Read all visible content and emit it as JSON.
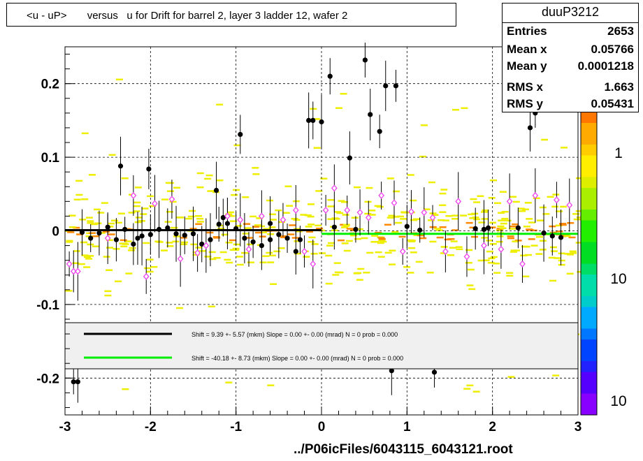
{
  "title": "<u - uP>       versus   u for Drift for barrel 2, layer 3 ladder 12, wafer 2",
  "stats": {
    "name": "duuP3212",
    "rows": [
      {
        "label": "Entries",
        "value": "2653"
      },
      {
        "label": "Mean x",
        "value": "0.05766"
      },
      {
        "label": "Mean y",
        "value": "0.0001218"
      },
      {
        "label": "RMS x",
        "value": "1.663"
      },
      {
        "label": "RMS y",
        "value": "0.05431"
      }
    ]
  },
  "footer": "../P06icFiles/6043115_6043121.root",
  "colors": {
    "black_series": "#000000",
    "green_series": "#00ee00",
    "hollow_marker": "#ee44ee",
    "scatter_yellow": "#eeee00",
    "scatter_orange": "#ff8800"
  },
  "chart_data": {
    "type": "scatter",
    "xlim": [
      -3,
      3
    ],
    "ylim": [
      -0.25,
      0.25
    ],
    "xticks": [
      "-3",
      "-2",
      "-1",
      "0",
      "1",
      "2",
      "3"
    ],
    "yticks": [
      "-0.2",
      "-0.1",
      "0",
      "0.1",
      "0.2"
    ],
    "grid": true,
    "colorbar_labels": [
      "1",
      "10",
      "10"
    ],
    "legend": {
      "placement": "bottom",
      "entries": [
        {
          "color": "#000000",
          "text": "Shift =    9.39 +- 5.57 (mkm) Slope =    0.00 +- 0.00 (mrad)  N = 0 prob = 0.000"
        },
        {
          "color": "#00ee00",
          "text": "Shift =   -40.18 +- 8.73 (mkm) Slope =    0.00 +- 0.00 (mrad)  N = 0 prob = 0.000"
        }
      ]
    },
    "fit_lines": [
      {
        "color": "#000000",
        "x": [
          -3,
          0
        ],
        "y": [
          0.001,
          0.001
        ]
      },
      {
        "color": "#00ee00",
        "x": [
          0,
          3
        ],
        "y": [
          -0.004,
          -0.004
        ]
      }
    ],
    "series": [
      {
        "marker": "filled",
        "color": "#000000",
        "points": [
          [
            -2.9,
            -0.205
          ],
          [
            -2.85,
            -0.205
          ],
          [
            -2.35,
            0.088
          ],
          [
            -2.02,
            0.084
          ],
          [
            -1.23,
            0.055
          ],
          [
            -0.95,
            0.131
          ],
          [
            -0.15,
            0.15
          ],
          [
            -0.1,
            0.15
          ],
          [
            0.0,
            0.148
          ],
          [
            0.1,
            0.21
          ],
          [
            0.33,
            0.099
          ],
          [
            0.51,
            0.232
          ],
          [
            0.57,
            0.158
          ],
          [
            0.68,
            0.135
          ],
          [
            0.75,
            0.197
          ],
          [
            0.87,
            0.197
          ],
          [
            0.82,
            -0.19
          ],
          [
            1.32,
            -0.192
          ],
          [
            2.44,
            0.14
          ],
          [
            2.5,
            0.16
          ],
          [
            -2.8,
            -0.002
          ],
          [
            -2.7,
            -0.01
          ],
          [
            -2.6,
            -0.003
          ],
          [
            -2.5,
            0.005
          ],
          [
            -2.4,
            -0.012
          ],
          [
            -2.3,
            0.002
          ],
          [
            -2.2,
            -0.018
          ],
          [
            -2.1,
            -0.007
          ],
          [
            -2.0,
            -0.005
          ],
          [
            -1.9,
            0.002
          ],
          [
            -1.8,
            0.004
          ],
          [
            -1.7,
            -0.004
          ],
          [
            -1.6,
            -0.006
          ],
          [
            -1.5,
            -0.004
          ],
          [
            -1.4,
            -0.018
          ],
          [
            -1.3,
            -0.012
          ],
          [
            -1.2,
            0.009
          ],
          [
            -1.1,
            0.01
          ],
          [
            -1.0,
            0.003
          ],
          [
            -0.9,
            -0.01
          ],
          [
            -0.8,
            -0.015
          ],
          [
            -0.7,
            -0.02
          ],
          [
            -0.6,
            -0.012
          ],
          [
            -0.5,
            -0.005
          ],
          [
            -0.4,
            -0.01
          ],
          [
            -0.3,
            -0.028
          ],
          [
            -0.25,
            -0.012
          ],
          [
            0.15,
            0.005
          ],
          [
            0.4,
            0.002
          ],
          [
            1.0,
            0.006
          ],
          [
            1.15,
            0.001
          ],
          [
            1.8,
            0.003
          ],
          [
            1.9,
            0.002
          ],
          [
            2.3,
            0.004
          ],
          [
            2.6,
            -0.003
          ],
          [
            2.7,
            -0.007
          ],
          [
            2.8,
            -0.009
          ],
          [
            -1.15,
            0.018
          ],
          [
            -0.6,
            0.01
          ],
          [
            1.95,
            0.004
          ],
          [
            -2.15,
            -0.01
          ]
        ]
      },
      {
        "marker": "hollow",
        "color": "#ee44ee",
        "points": [
          [
            -2.95,
            -0.045
          ],
          [
            -2.9,
            -0.055
          ],
          [
            -2.85,
            -0.055
          ],
          [
            -2.2,
            0.048
          ],
          [
            -1.95,
            0.037
          ],
          [
            -1.75,
            0.043
          ],
          [
            -1.65,
            -0.038
          ],
          [
            -1.45,
            -0.03
          ],
          [
            -1.35,
            -0.02
          ],
          [
            -1.1,
            0.02
          ],
          [
            -0.95,
            0.015
          ],
          [
            -0.85,
            -0.025
          ],
          [
            -0.7,
            0.02
          ],
          [
            -0.45,
            0.015
          ],
          [
            -0.3,
            0.028
          ],
          [
            -0.2,
            -0.028
          ],
          [
            -0.1,
            -0.045
          ],
          [
            0.05,
            0.028
          ],
          [
            0.15,
            0.058
          ],
          [
            0.3,
            0.028
          ],
          [
            0.45,
            0.025
          ],
          [
            0.7,
            0.048
          ],
          [
            0.85,
            0.038
          ],
          [
            0.95,
            -0.028
          ],
          [
            1.05,
            0.026
          ],
          [
            1.3,
            0.018
          ],
          [
            1.45,
            -0.028
          ],
          [
            1.6,
            0.04
          ],
          [
            1.7,
            -0.035
          ],
          [
            1.9,
            -0.02
          ],
          [
            2.1,
            -0.025
          ],
          [
            2.2,
            0.04
          ],
          [
            2.35,
            -0.045
          ],
          [
            2.5,
            0.048
          ],
          [
            2.75,
            0.042
          ],
          [
            2.9,
            0.035
          ],
          [
            -2.05,
            -0.062
          ],
          [
            -2.5,
            -0.01
          ],
          [
            0.55,
            0.018
          ],
          [
            1.2,
            0.025
          ]
        ]
      }
    ]
  }
}
